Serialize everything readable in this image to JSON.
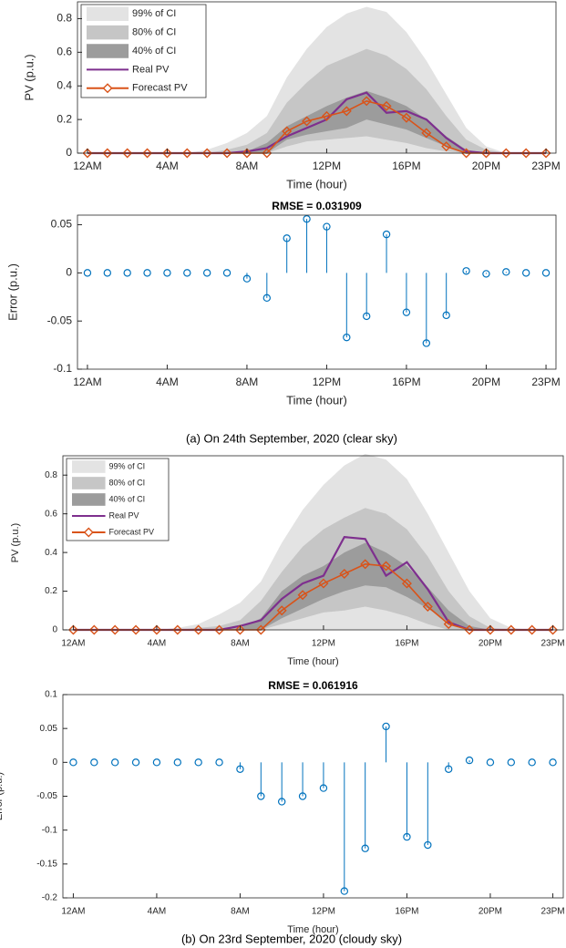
{
  "chart_data": [
    {
      "type": "band-line",
      "xlabel": "Time (hour)",
      "ylabel": "PV (p.u.)",
      "x": [
        0,
        1,
        2,
        3,
        4,
        5,
        6,
        7,
        8,
        9,
        10,
        11,
        12,
        13,
        14,
        15,
        16,
        17,
        18,
        19,
        20,
        21,
        22,
        23
      ],
      "series": [
        {
          "name": "99% of CI",
          "color": "#e3e3e3",
          "upper": [
            0,
            0,
            0,
            0,
            0,
            0,
            0.02,
            0.06,
            0.12,
            0.22,
            0.45,
            0.62,
            0.75,
            0.83,
            0.87,
            0.84,
            0.72,
            0.55,
            0.35,
            0.15,
            0.04,
            0,
            0,
            0
          ],
          "lower": [
            0,
            0,
            0,
            0,
            0,
            0,
            0,
            0,
            0,
            0,
            0,
            0,
            0,
            0,
            0,
            0,
            0,
            0,
            0,
            0,
            0,
            0,
            0,
            0
          ]
        },
        {
          "name": "80% of CI",
          "color": "#c6c6c6",
          "upper": [
            0,
            0,
            0,
            0,
            0,
            0,
            0,
            0.02,
            0.05,
            0.12,
            0.3,
            0.42,
            0.52,
            0.57,
            0.62,
            0.58,
            0.5,
            0.38,
            0.22,
            0.08,
            0.02,
            0,
            0,
            0
          ],
          "lower": [
            0,
            0,
            0,
            0,
            0,
            0,
            0,
            0,
            0,
            0,
            0.04,
            0.07,
            0.08,
            0.09,
            0.1,
            0.08,
            0.06,
            0.03,
            0.01,
            0,
            0,
            0,
            0,
            0
          ]
        },
        {
          "name": "40% of CI",
          "color": "#9c9c9c",
          "upper": [
            0,
            0,
            0,
            0,
            0,
            0,
            0,
            0,
            0.01,
            0.06,
            0.16,
            0.22,
            0.28,
            0.33,
            0.37,
            0.33,
            0.28,
            0.2,
            0.1,
            0.02,
            0,
            0,
            0,
            0
          ],
          "lower": [
            0,
            0,
            0,
            0,
            0,
            0,
            0,
            0,
            0,
            0,
            0.08,
            0.11,
            0.13,
            0.15,
            0.2,
            0.17,
            0.14,
            0.09,
            0.04,
            0,
            0,
            0,
            0,
            0
          ]
        },
        {
          "name": "Real PV",
          "color": "#7e2f8e",
          "values": [
            0,
            0,
            0,
            0,
            0,
            0,
            0,
            0,
            0.01,
            0.03,
            0.1,
            0.15,
            0.2,
            0.32,
            0.36,
            0.24,
            0.25,
            0.2,
            0.09,
            0.01,
            0,
            0,
            0,
            0
          ]
        },
        {
          "name": "Forecast PV",
          "color": "#d95319",
          "marker": "diamond",
          "values": [
            0,
            0,
            0,
            0,
            0,
            0,
            0,
            0,
            0,
            0,
            0.13,
            0.19,
            0.22,
            0.25,
            0.31,
            0.28,
            0.21,
            0.12,
            0.04,
            0,
            0,
            0,
            0,
            0
          ]
        }
      ],
      "xlim": [
        -0.5,
        23.5
      ],
      "ylim": [
        0,
        0.9
      ],
      "xticks": [
        {
          "value": 0,
          "label": "12AM"
        },
        {
          "value": 4,
          "label": "4AM"
        },
        {
          "value": 8,
          "label": "8AM"
        },
        {
          "value": 12,
          "label": "12PM"
        },
        {
          "value": 16,
          "label": "16PM"
        },
        {
          "value": 20,
          "label": "20PM"
        },
        {
          "value": 23,
          "label": "23PM"
        }
      ],
      "yticks": [
        0,
        0.2,
        0.4,
        0.6,
        0.8
      ],
      "legend": "upper left"
    },
    {
      "type": "stem",
      "title": "RMSE = 0.031909",
      "xlabel": "Time (hour)",
      "ylabel": "Error (p.u.)",
      "color": "#0072bd",
      "x": [
        0,
        1,
        2,
        3,
        4,
        5,
        6,
        7,
        8,
        9,
        10,
        11,
        12,
        13,
        14,
        15,
        16,
        17,
        18,
        19,
        20,
        21,
        22,
        23
      ],
      "values": [
        0,
        0,
        0,
        0,
        0,
        0,
        0,
        0,
        -0.006,
        -0.026,
        0.036,
        0.056,
        0.048,
        -0.067,
        -0.045,
        0.04,
        -0.041,
        -0.073,
        -0.044,
        0.002,
        -0.001,
        0.001,
        0,
        0
      ],
      "xlim": [
        -0.5,
        23.5
      ],
      "ylim": [
        -0.1,
        0.06
      ],
      "xticks": [
        {
          "value": 0,
          "label": "12AM"
        },
        {
          "value": 4,
          "label": "4AM"
        },
        {
          "value": 8,
          "label": "8AM"
        },
        {
          "value": 12,
          "label": "12PM"
        },
        {
          "value": 16,
          "label": "16PM"
        },
        {
          "value": 20,
          "label": "20PM"
        },
        {
          "value": 23,
          "label": "23PM"
        }
      ],
      "yticks": [
        -0.1,
        -0.05,
        0,
        0.05
      ]
    },
    {
      "type": "band-line",
      "xlabel": "Time (hour)",
      "ylabel": "PV (p.u.)",
      "x": [
        0,
        1,
        2,
        3,
        4,
        5,
        6,
        7,
        8,
        9,
        10,
        11,
        12,
        13,
        14,
        15,
        16,
        17,
        18,
        19,
        20,
        21,
        22,
        23
      ],
      "series": [
        {
          "name": "99% of CI",
          "color": "#e3e3e3",
          "upper": [
            0,
            0,
            0,
            0,
            0,
            0.01,
            0.03,
            0.08,
            0.14,
            0.25,
            0.45,
            0.62,
            0.75,
            0.85,
            0.91,
            0.88,
            0.78,
            0.6,
            0.4,
            0.2,
            0.06,
            0.01,
            0,
            0
          ],
          "lower": [
            0,
            0,
            0,
            0,
            0,
            0,
            0,
            0,
            0,
            0,
            0,
            0,
            0,
            0,
            0,
            0,
            0,
            0,
            0,
            0,
            0,
            0,
            0,
            0
          ]
        },
        {
          "name": "80% of CI",
          "color": "#c6c6c6",
          "upper": [
            0,
            0,
            0,
            0,
            0,
            0,
            0.01,
            0.02,
            0.05,
            0.15,
            0.3,
            0.43,
            0.52,
            0.58,
            0.63,
            0.6,
            0.52,
            0.38,
            0.2,
            0.07,
            0.01,
            0,
            0,
            0
          ],
          "lower": [
            0,
            0,
            0,
            0,
            0,
            0,
            0,
            0,
            0,
            0,
            0.03,
            0.06,
            0.09,
            0.1,
            0.12,
            0.1,
            0.07,
            0.03,
            0,
            0,
            0,
            0,
            0,
            0
          ]
        },
        {
          "name": "40% of CI",
          "color": "#9c9c9c",
          "upper": [
            0,
            0,
            0,
            0,
            0,
            0,
            0,
            0,
            0.01,
            0.06,
            0.2,
            0.28,
            0.33,
            0.4,
            0.45,
            0.4,
            0.33,
            0.22,
            0.1,
            0.02,
            0,
            0,
            0,
            0
          ],
          "lower": [
            0,
            0,
            0,
            0,
            0,
            0,
            0,
            0,
            0,
            0,
            0.06,
            0.11,
            0.16,
            0.2,
            0.23,
            0.22,
            0.17,
            0.11,
            0.04,
            0,
            0,
            0,
            0,
            0
          ]
        },
        {
          "name": "Real PV",
          "color": "#7e2f8e",
          "values": [
            0,
            0,
            0,
            0,
            0,
            0,
            0,
            0,
            0.02,
            0.05,
            0.16,
            0.24,
            0.28,
            0.48,
            0.47,
            0.28,
            0.35,
            0.21,
            0.04,
            0,
            0,
            0,
            0,
            0
          ]
        },
        {
          "name": "Forecast PV",
          "color": "#d95319",
          "marker": "diamond",
          "values": [
            0,
            0,
            0,
            0,
            0,
            0,
            0,
            0,
            0,
            0,
            0.1,
            0.18,
            0.24,
            0.29,
            0.34,
            0.33,
            0.24,
            0.12,
            0.03,
            0,
            0,
            0,
            0,
            0
          ]
        }
      ],
      "xlim": [
        -0.5,
        23.5
      ],
      "ylim": [
        0,
        0.9
      ],
      "xticks": [
        {
          "value": 0,
          "label": "12AM"
        },
        {
          "value": 4,
          "label": "4AM"
        },
        {
          "value": 8,
          "label": "8AM"
        },
        {
          "value": 12,
          "label": "12PM"
        },
        {
          "value": 16,
          "label": "16PM"
        },
        {
          "value": 20,
          "label": "20PM"
        },
        {
          "value": 23,
          "label": "23PM"
        }
      ],
      "yticks": [
        0,
        0.2,
        0.4,
        0.6,
        0.8
      ],
      "legend": "upper left"
    },
    {
      "type": "stem",
      "title": "RMSE = 0.061916",
      "xlabel": "Time (hour)",
      "ylabel": "Error (p.u.)",
      "color": "#0072bd",
      "x": [
        0,
        1,
        2,
        3,
        4,
        5,
        6,
        7,
        8,
        9,
        10,
        11,
        12,
        13,
        14,
        15,
        16,
        17,
        18,
        19,
        20,
        21,
        22,
        23
      ],
      "values": [
        0,
        0,
        0,
        0,
        0,
        0,
        0,
        0,
        -0.01,
        -0.05,
        -0.058,
        -0.05,
        -0.038,
        -0.19,
        -0.127,
        0.053,
        -0.11,
        -0.122,
        -0.01,
        0.003,
        0,
        0,
        0,
        0
      ],
      "xlim": [
        -0.5,
        23.5
      ],
      "ylim": [
        -0.2,
        0.1
      ],
      "xticks": [
        {
          "value": 0,
          "label": "12AM"
        },
        {
          "value": 4,
          "label": "4AM"
        },
        {
          "value": 8,
          "label": "8AM"
        },
        {
          "value": 12,
          "label": "12PM"
        },
        {
          "value": 16,
          "label": "16PM"
        },
        {
          "value": 20,
          "label": "20PM"
        },
        {
          "value": 23,
          "label": "23PM"
        }
      ],
      "yticks": [
        -0.2,
        -0.15,
        -0.1,
        -0.05,
        0,
        0.05,
        0.1
      ]
    }
  ],
  "captions": [
    "(a)   On 24th September, 2020 (clear sky)",
    "(b) On 23rd September, 2020 (cloudy sky)"
  ]
}
